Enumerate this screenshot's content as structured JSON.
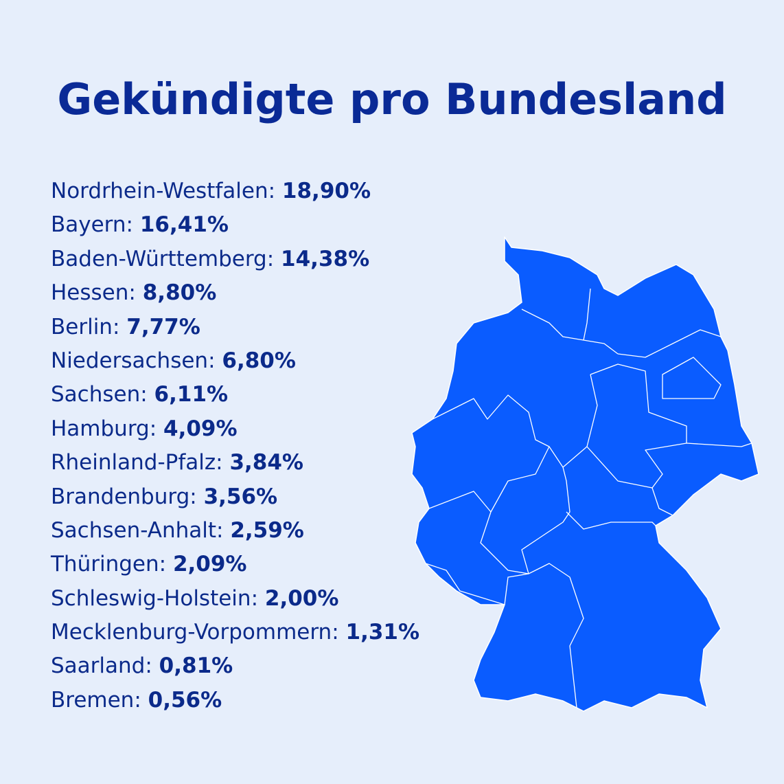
{
  "title": "Gekündigte pro Bundesland",
  "items": [
    {
      "label": "Nordrhein-Westfalen:",
      "value": "18,90%"
    },
    {
      "label": "Bayern:",
      "value": "16,41%"
    },
    {
      "label": "Baden-Württemberg:",
      "value": "14,38%"
    },
    {
      "label": "Hessen:",
      "value": "8,80%"
    },
    {
      "label": "Berlin:",
      "value": "7,77%"
    },
    {
      "label": "Niedersachsen:",
      "value": "6,80%"
    },
    {
      "label": "Sachsen:",
      "value": "6,11%"
    },
    {
      "label": "Hamburg:",
      "value": "4,09%"
    },
    {
      "label": "Rheinland-Pfalz:",
      "value": "3,84%"
    },
    {
      "label": "Brandenburg:",
      "value": "3,56%"
    },
    {
      "label": "Sachsen-Anhalt:",
      "value": "2,59%"
    },
    {
      "label": "Thüringen:",
      "value": "2,09%"
    },
    {
      "label": "Schleswig-Holstein:",
      "value": "2,00%"
    },
    {
      "label": "Mecklenburg-Vorpommern:",
      "value": "1,31%"
    },
    {
      "label": "Saarland:",
      "value": "0,81%"
    },
    {
      "label": "Bremen:",
      "value": "0,56%"
    }
  ]
}
